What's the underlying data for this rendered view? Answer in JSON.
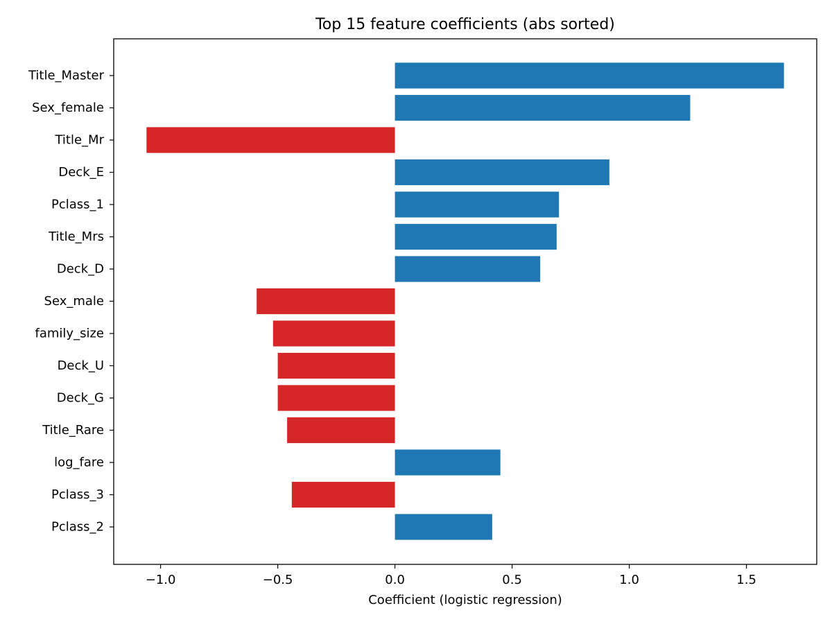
{
  "chart_data": {
    "type": "bar",
    "orientation": "horizontal",
    "title": "Top 15 feature coefficients (abs sorted)",
    "xlabel": "Coefficient (logistic regression)",
    "ylabel": "",
    "xlim": [
      -1.2,
      1.8
    ],
    "xticks": [
      -1.0,
      -0.5,
      0.0,
      0.5,
      1.0,
      1.5
    ],
    "xtick_labels": [
      "−1.0",
      "−0.5",
      "0.0",
      "0.5",
      "1.0",
      "1.5"
    ],
    "grid": false,
    "legend": null,
    "categories": [
      "Title_Master",
      "Sex_female",
      "Title_Mr",
      "Deck_E",
      "Pclass_1",
      "Title_Mrs",
      "Deck_D",
      "Sex_male",
      "family_size",
      "Deck_U",
      "Deck_G",
      "Title_Rare",
      "log_fare",
      "Pclass_3",
      "Pclass_2"
    ],
    "values": [
      1.66,
      1.26,
      -1.06,
      0.915,
      0.7,
      0.69,
      0.62,
      -0.59,
      -0.52,
      -0.5,
      -0.5,
      -0.46,
      0.45,
      -0.44,
      0.415
    ],
    "colors": {
      "positive": "#1f77b4",
      "negative": "#d62728",
      "axes": "#000000"
    }
  }
}
